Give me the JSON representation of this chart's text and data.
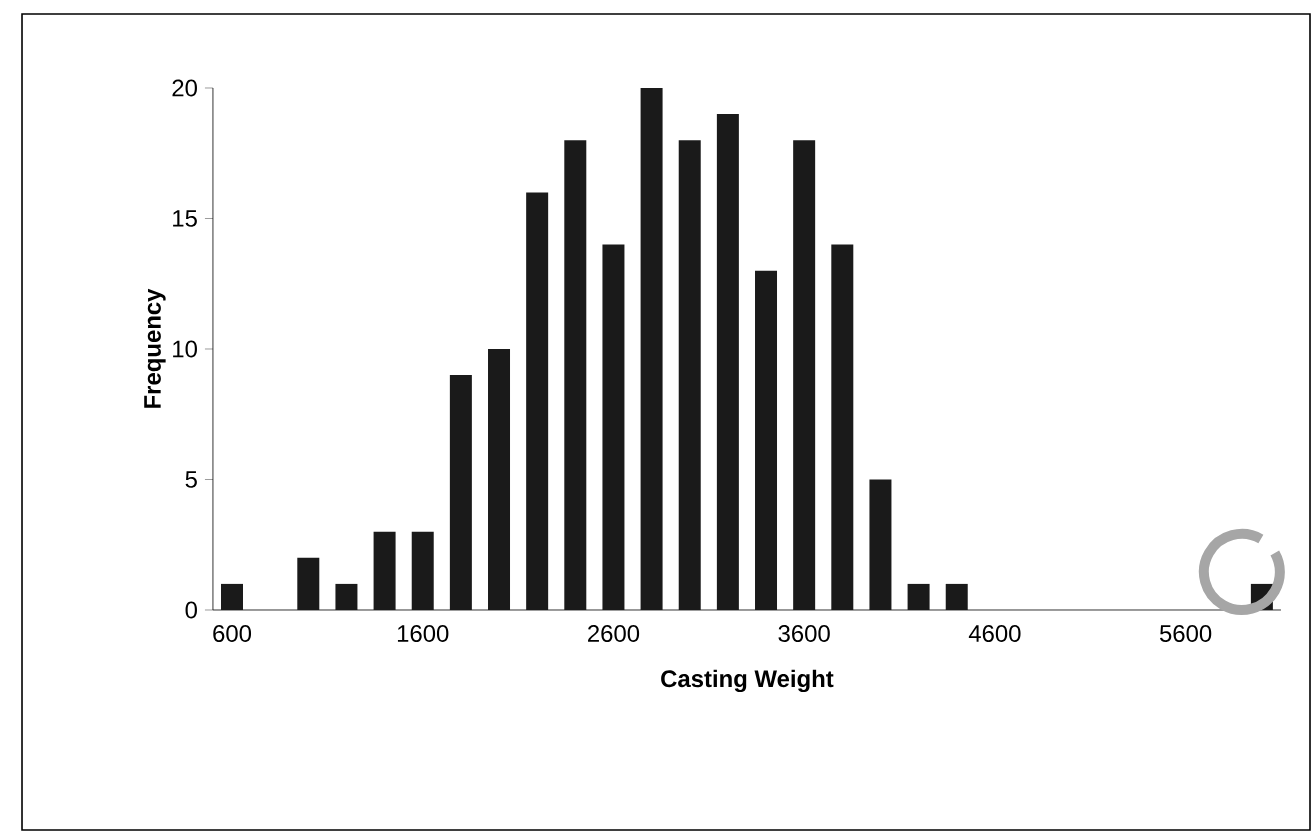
{
  "chart_data": {
    "type": "bar",
    "xlabel": "Casting Weight",
    "ylabel": "Frequency",
    "categories": [
      "600",
      null,
      null,
      null,
      null,
      "1600",
      null,
      null,
      null,
      null,
      "2600",
      null,
      null,
      null,
      null,
      "3600",
      null,
      null,
      null,
      null,
      "4600",
      null,
      null,
      null,
      null,
      "5600",
      null,
      null
    ],
    "values": [
      1,
      0,
      2,
      1,
      3,
      3,
      9,
      10,
      16,
      18,
      14,
      20,
      18,
      19,
      13,
      18,
      14,
      5,
      1,
      1,
      0,
      0,
      0,
      0,
      0,
      0,
      0,
      1
    ],
    "color": "#1a1a1a",
    "ylim": [
      0,
      20
    ],
    "yticks": [
      0,
      5,
      10,
      15,
      20
    ],
    "grid": false
  }
}
